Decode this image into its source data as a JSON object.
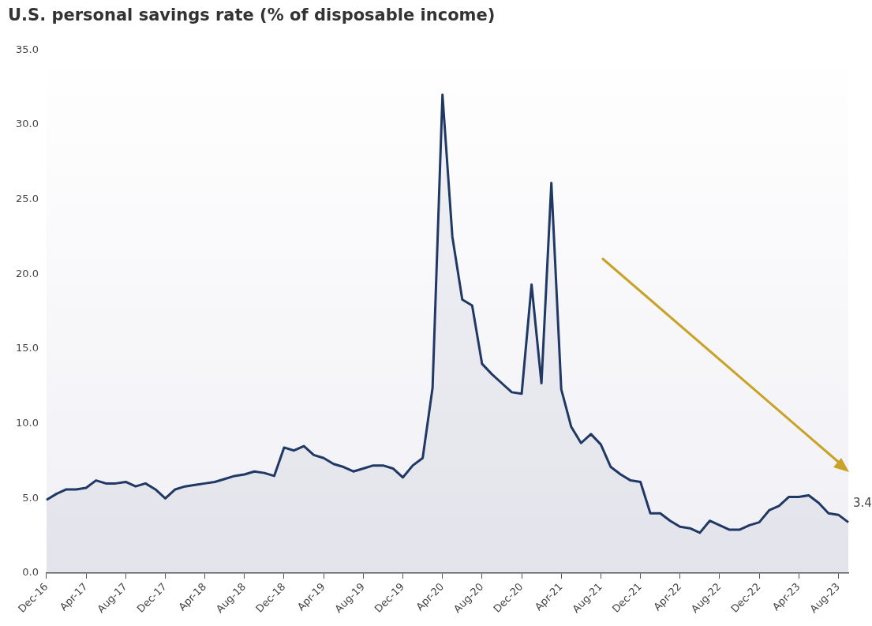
{
  "chart_data": {
    "type": "area",
    "title": "U.S. personal savings rate (% of disposable income)",
    "categories": [
      "Dec-16",
      null,
      null,
      null,
      "Apr-17",
      null,
      null,
      null,
      "Aug-17",
      null,
      null,
      null,
      "Dec-17",
      null,
      null,
      null,
      "Apr-18",
      null,
      null,
      null,
      "Aug-18",
      null,
      null,
      null,
      "Dec-18",
      null,
      null,
      null,
      "Apr-19",
      null,
      null,
      null,
      "Aug-19",
      null,
      null,
      null,
      "Dec-19",
      null,
      null,
      null,
      "Apr-20",
      null,
      null,
      null,
      "Aug-20",
      null,
      null,
      null,
      "Dec-20",
      null,
      null,
      null,
      "Apr-21",
      null,
      null,
      null,
      "Aug-21",
      null,
      null,
      null,
      "Dec-21",
      null,
      null,
      null,
      "Apr-22",
      null,
      null,
      null,
      "Aug-22",
      null,
      null,
      null,
      "Dec-22",
      null,
      null,
      null,
      "Apr-23",
      null,
      null,
      null,
      "Aug-23",
      null
    ],
    "series": [
      {
        "color": "#1f3864",
        "values": [
          4.9,
          5.3,
          5.6,
          5.6,
          5.7,
          6.2,
          6.0,
          6.0,
          6.1,
          5.8,
          6.0,
          5.6,
          5.0,
          5.6,
          5.8,
          5.9,
          6.0,
          6.1,
          6.3,
          6.5,
          6.6,
          6.8,
          6.7,
          6.5,
          8.4,
          8.2,
          8.5,
          7.9,
          7.7,
          7.3,
          7.1,
          6.8,
          7.0,
          7.2,
          7.2,
          7.0,
          6.4,
          7.2,
          7.7,
          12.4,
          32.0,
          22.5,
          18.3,
          17.9,
          14.0,
          13.3,
          12.7,
          12.1,
          12.0,
          19.3,
          12.7,
          26.1,
          12.3,
          9.8,
          8.7,
          9.3,
          8.6,
          7.1,
          6.6,
          6.2,
          6.1,
          4.0,
          4.0,
          3.5,
          3.1,
          3.0,
          2.7,
          3.5,
          3.2,
          2.9,
          2.9,
          3.2,
          3.4,
          4.2,
          4.5,
          5.1,
          5.1,
          5.2,
          4.7,
          4.0,
          3.9,
          3.4
        ]
      }
    ],
    "ylim": [
      0,
      35
    ],
    "yticks": [
      {
        "value": 0,
        "label": "0.0"
      },
      {
        "value": 5,
        "label": "5.0"
      },
      {
        "value": 10,
        "label": "10.0"
      },
      {
        "value": 15,
        "label": "15.0"
      },
      {
        "value": 20,
        "label": "20.0"
      },
      {
        "value": 25,
        "label": "25.0"
      },
      {
        "value": 30,
        "label": "30.0"
      },
      {
        "value": 35,
        "label": "35.0"
      }
    ],
    "annotations": [
      "3.4"
    ],
    "grid": false,
    "legend": false,
    "marker": "none",
    "line_style": "solid"
  }
}
